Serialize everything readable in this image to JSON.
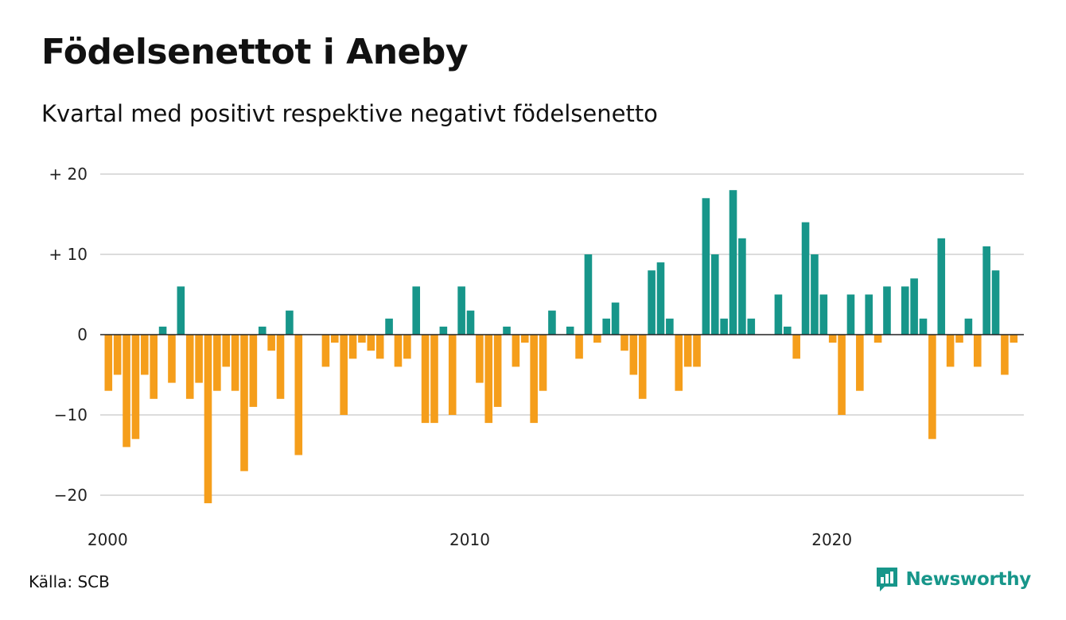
{
  "header": {
    "title": "Födelsenettot i Aneby",
    "subtitle": "Kvartal med positivt respektive negativt födelsenetto"
  },
  "footer": {
    "source": "Källa: SCB",
    "brand": "Newsworthy",
    "brand_icon": "newsworthy-logo-icon"
  },
  "colors": {
    "positive": "#17968a",
    "negative": "#f59e1b",
    "grid": "#dcdcdc",
    "zero_line": "#222222",
    "brand": "#17968a"
  },
  "chart_data": {
    "type": "bar",
    "x_start": "2000 Q1",
    "interval": "quarter",
    "ylim": [
      -21,
      20
    ],
    "yticks": [
      20,
      10,
      0,
      -10,
      -20
    ],
    "ytick_labels": [
      "+ 20",
      "+ 10",
      "0",
      "−10",
      "−20"
    ],
    "xticks": [
      2000,
      2010,
      2020
    ],
    "xtick_labels": [
      "2000",
      "2010",
      "2020"
    ],
    "grid": true,
    "values": [
      -7,
      -5,
      -14,
      -13,
      -5,
      -8,
      1,
      -6,
      6,
      -8,
      -6,
      -21,
      -7,
      -4,
      -7,
      -17,
      -9,
      1,
      -2,
      -8,
      3,
      -15,
      0,
      0,
      -4,
      -1,
      -10,
      -3,
      -1,
      -2,
      -3,
      2,
      -4,
      -3,
      6,
      -11,
      -11,
      1,
      -10,
      6,
      3,
      -6,
      -11,
      -9,
      1,
      -4,
      -1,
      -11,
      -7,
      3,
      0,
      1,
      -3,
      10,
      -1,
      2,
      4,
      -2,
      -5,
      -8,
      8,
      9,
      2,
      -7,
      -4,
      -4,
      17,
      10,
      2,
      18,
      12,
      2,
      0,
      0,
      5,
      1,
      -3,
      14,
      10,
      5,
      -1,
      -10,
      5,
      -7,
      5,
      -1,
      6,
      0,
      6,
      7,
      2,
      -13,
      12,
      -4,
      -1,
      2,
      -4,
      11,
      8,
      -5,
      -1
    ]
  }
}
